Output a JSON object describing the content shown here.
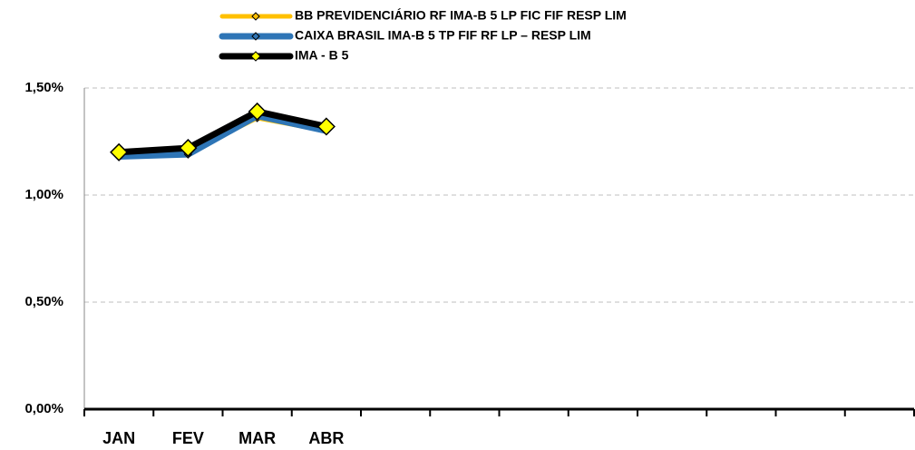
{
  "chart_data": {
    "type": "line",
    "categories": [
      "JAN",
      "FEV",
      "MAR",
      "ABR",
      null,
      null,
      null,
      null,
      null,
      null,
      null,
      null
    ],
    "series": [
      {
        "name": "BB PREVIDENCIÁRIO RF IMA-B 5 LP FIC FIF RESP LIM",
        "color": "#ffc000",
        "marker_color": "#ffc000",
        "values": [
          1.18,
          1.2,
          1.36,
          1.3,
          null,
          null,
          null,
          null,
          null,
          null,
          null,
          null
        ]
      },
      {
        "name": "CAIXA BRASIL IMA-B 5 TP FIF RF LP – RESP LIM",
        "color": "#2e75b6",
        "marker_color": "#2e75b6",
        "values": [
          1.18,
          1.19,
          1.37,
          1.3,
          null,
          null,
          null,
          null,
          null,
          null,
          null,
          null
        ]
      },
      {
        "name": "IMA - B 5",
        "color": "#000000",
        "marker_color": "#ffff00",
        "values": [
          1.2,
          1.22,
          1.39,
          1.32,
          null,
          null,
          null,
          null,
          null,
          null,
          null,
          null
        ]
      }
    ],
    "ylim": [
      0,
      1.5
    ],
    "yticks": [
      {
        "value": 0,
        "label": "0,00%"
      },
      {
        "value": 0.5,
        "label": "0,50%"
      },
      {
        "value": 1,
        "label": "1,00%"
      },
      {
        "value": 1.5,
        "label": "1,50%"
      }
    ],
    "grid": true,
    "legend": "top"
  }
}
